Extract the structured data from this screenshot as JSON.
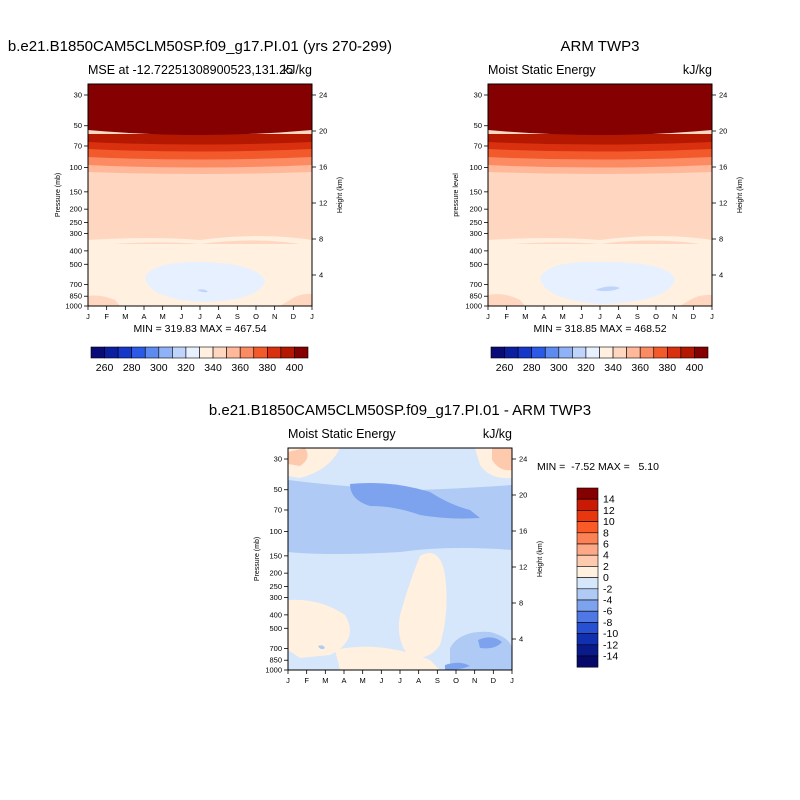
{
  "chart_data": [
    {
      "type": "heatmap",
      "id": "model",
      "title": "b.e21.B1850CAM5CLM50SP.f09_g17.PI.01 (yrs 270-299)",
      "subtitle_left": "MSE at -12.72251308900523,131.25",
      "subtitle_right": "kJ/kg",
      "ylabel": "Pressure (mb)",
      "ylabel_right": "Height (km)",
      "stats": "MIN = 319.83 MAX = 467.54",
      "x_ticks": [
        "J",
        "F",
        "M",
        "A",
        "M",
        "J",
        "J",
        "A",
        "S",
        "O",
        "N",
        "D",
        "J"
      ],
      "y_ticks": [
        "30",
        "50",
        "70",
        "100",
        "150",
        "200",
        "250",
        "300",
        "400",
        "500",
        "700",
        "850",
        "1000"
      ],
      "y_ticks_right": [
        "24",
        "20",
        "16",
        "12",
        "8",
        "4"
      ],
      "min": 319.83,
      "max": 467.54
    },
    {
      "type": "heatmap",
      "id": "obs",
      "title": "ARM TWP3",
      "subtitle_left": "Moist Static Energy",
      "subtitle_right": "kJ/kg",
      "ylabel": "pressure level",
      "ylabel_right": "Height (km)",
      "stats": "MIN = 318.85 MAX = 468.52",
      "x_ticks": [
        "J",
        "F",
        "M",
        "A",
        "M",
        "J",
        "J",
        "A",
        "S",
        "O",
        "N",
        "D",
        "J"
      ],
      "y_ticks": [
        "30",
        "50",
        "70",
        "100",
        "150",
        "200",
        "250",
        "300",
        "400",
        "500",
        "700",
        "850",
        "1000"
      ],
      "y_ticks_right": [
        "24",
        "20",
        "16",
        "12",
        "8",
        "4"
      ],
      "min": 318.85,
      "max": 468.52
    },
    {
      "type": "heatmap",
      "id": "diff",
      "title": "b.e21.B1850CAM5CLM50SP.f09_g17.PI.01 - ARM TWP3",
      "subtitle_left": "Moist Static Energy",
      "subtitle_right": "kJ/kg",
      "ylabel": "Pressure (mb)",
      "ylabel_right": "Height (km)",
      "stats": "MIN =  -7.52 MAX =   5.10",
      "x_ticks": [
        "J",
        "F",
        "M",
        "A",
        "M",
        "J",
        "J",
        "A",
        "S",
        "O",
        "N",
        "D",
        "J"
      ],
      "y_ticks": [
        "30",
        "50",
        "70",
        "100",
        "150",
        "200",
        "250",
        "300",
        "400",
        "500",
        "700",
        "850",
        "1000"
      ],
      "y_ticks_right": [
        "24",
        "20",
        "16",
        "12",
        "8",
        "4"
      ],
      "min": -7.52,
      "max": 5.1
    }
  ],
  "colorbar_mse": {
    "labels": [
      "260",
      "280",
      "300",
      "320",
      "340",
      "360",
      "380",
      "400"
    ],
    "colors": [
      "#0a0a78",
      "#0c1fa0",
      "#1638c8",
      "#2a5ae6",
      "#5d8bf0",
      "#8fb1f5",
      "#bfd4fa",
      "#e6f0ff",
      "#fff0e0",
      "#ffd6c0",
      "#ffb89a",
      "#fc8a62",
      "#f25a2c",
      "#d9300f",
      "#b41800",
      "#850000"
    ]
  },
  "colorbar_diff": {
    "labels": [
      "14",
      "12",
      "10",
      "8",
      "6",
      "4",
      "2",
      "0",
      "-2",
      "-4",
      "-6",
      "-8",
      "-10",
      "-12",
      "-14"
    ],
    "colors": [
      "#850000",
      "#c81a05",
      "#e8360f",
      "#fa5a26",
      "#fc8256",
      "#fda887",
      "#fecaae",
      "#fff0e0",
      "#d6e6fb",
      "#aecaf5",
      "#7ea3ee",
      "#4f78e4",
      "#2850d2",
      "#1030b0",
      "#0a1a8a",
      "#050a6a"
    ]
  }
}
